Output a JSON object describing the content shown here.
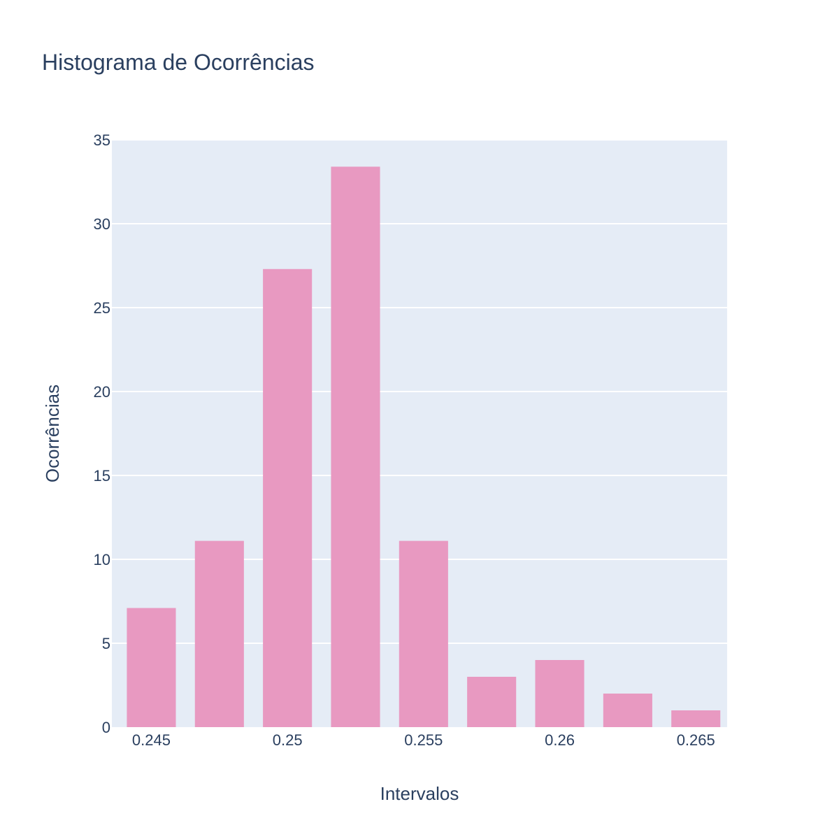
{
  "colors": {
    "plot_background": "#e5ecf6",
    "gridline": "#ffffff",
    "bar_fill": "#e899c1",
    "text": "#2a3f5f"
  },
  "chart_data": {
    "type": "bar",
    "title": "Histograma de Ocorrências",
    "xlabel": "Intervalos",
    "ylabel": "Ocorrências",
    "bin_width": 0.0025,
    "bins": [
      {
        "center": 0.245,
        "count": 7.1
      },
      {
        "center": 0.2475,
        "count": 11.1
      },
      {
        "center": 0.25,
        "count": 27.3
      },
      {
        "center": 0.2525,
        "count": 33.4
      },
      {
        "center": 0.255,
        "count": 11.1
      },
      {
        "center": 0.2575,
        "count": 3.0
      },
      {
        "center": 0.26,
        "count": 4.0
      },
      {
        "center": 0.2625,
        "count": 2.0
      },
      {
        "center": 0.265,
        "count": 1.0
      }
    ],
    "xlim": [
      0.24355,
      0.26615
    ],
    "ylim": [
      0,
      35
    ],
    "x_ticks": [
      {
        "value": 0.245,
        "label": "0.245"
      },
      {
        "value": 0.25,
        "label": "0.25"
      },
      {
        "value": 0.255,
        "label": "0.255"
      },
      {
        "value": 0.26,
        "label": "0.26"
      },
      {
        "value": 0.265,
        "label": "0.265"
      }
    ],
    "y_ticks": [
      {
        "value": 0,
        "label": "0"
      },
      {
        "value": 5,
        "label": "5"
      },
      {
        "value": 10,
        "label": "10"
      },
      {
        "value": 15,
        "label": "15"
      },
      {
        "value": 20,
        "label": "20"
      },
      {
        "value": 25,
        "label": "25"
      },
      {
        "value": 30,
        "label": "30"
      },
      {
        "value": 35,
        "label": "35"
      }
    ],
    "grid": true,
    "legend": "none"
  }
}
